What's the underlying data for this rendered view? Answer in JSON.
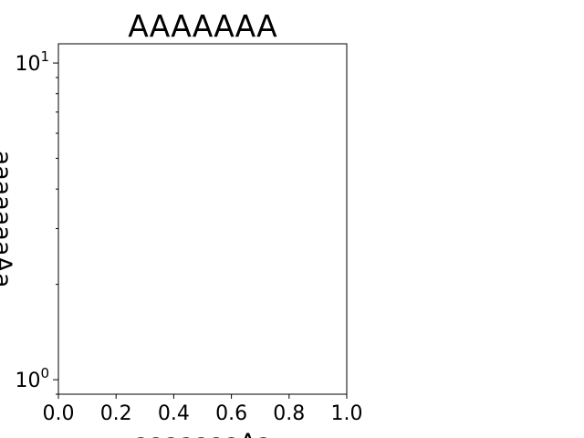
{
  "chart_data": {
    "type": "line",
    "title": "AAAAAAA",
    "xlabel": "aaaaaaaAa",
    "ylabel": "aaaaaaaAa",
    "xlim": [
      0.0,
      1.0
    ],
    "ylim": [
      0.9,
      11.5
    ],
    "yscale": "log",
    "grid": false,
    "series": [],
    "x_ticks": [
      0.0,
      0.2,
      0.4,
      0.6,
      0.8,
      1.0
    ],
    "x_tick_labels": [
      "0.0",
      "0.2",
      "0.4",
      "0.6",
      "0.8",
      "1.0"
    ],
    "y_major_ticks": [
      1,
      10
    ],
    "y_tick_labels": [
      {
        "base": "10",
        "exp": "0"
      },
      {
        "base": "10",
        "exp": "1"
      }
    ],
    "y_minor_ticks": [
      0.9,
      2,
      3,
      4,
      5,
      6,
      7,
      8,
      9
    ],
    "colors": {
      "axis": "#000000",
      "background": "#ffffff"
    }
  }
}
